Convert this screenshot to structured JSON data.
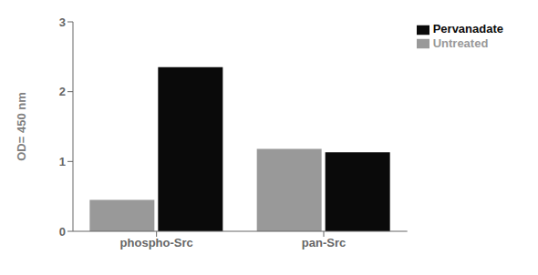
{
  "chart_data": {
    "type": "bar",
    "categories": [
      "phospho-Src",
      "pan-Src"
    ],
    "series": [
      {
        "name": "Untreated",
        "color": "#999999",
        "values": [
          0.45,
          1.18
        ]
      },
      {
        "name": "Pervanadate",
        "color": "#0a0a0a",
        "values": [
          2.35,
          1.13
        ]
      }
    ],
    "ylabel": "OD= 450 nm",
    "ylim": [
      0,
      3
    ],
    "yticks": [
      0,
      1,
      2,
      3
    ],
    "grid": false,
    "legend": "upper right"
  }
}
